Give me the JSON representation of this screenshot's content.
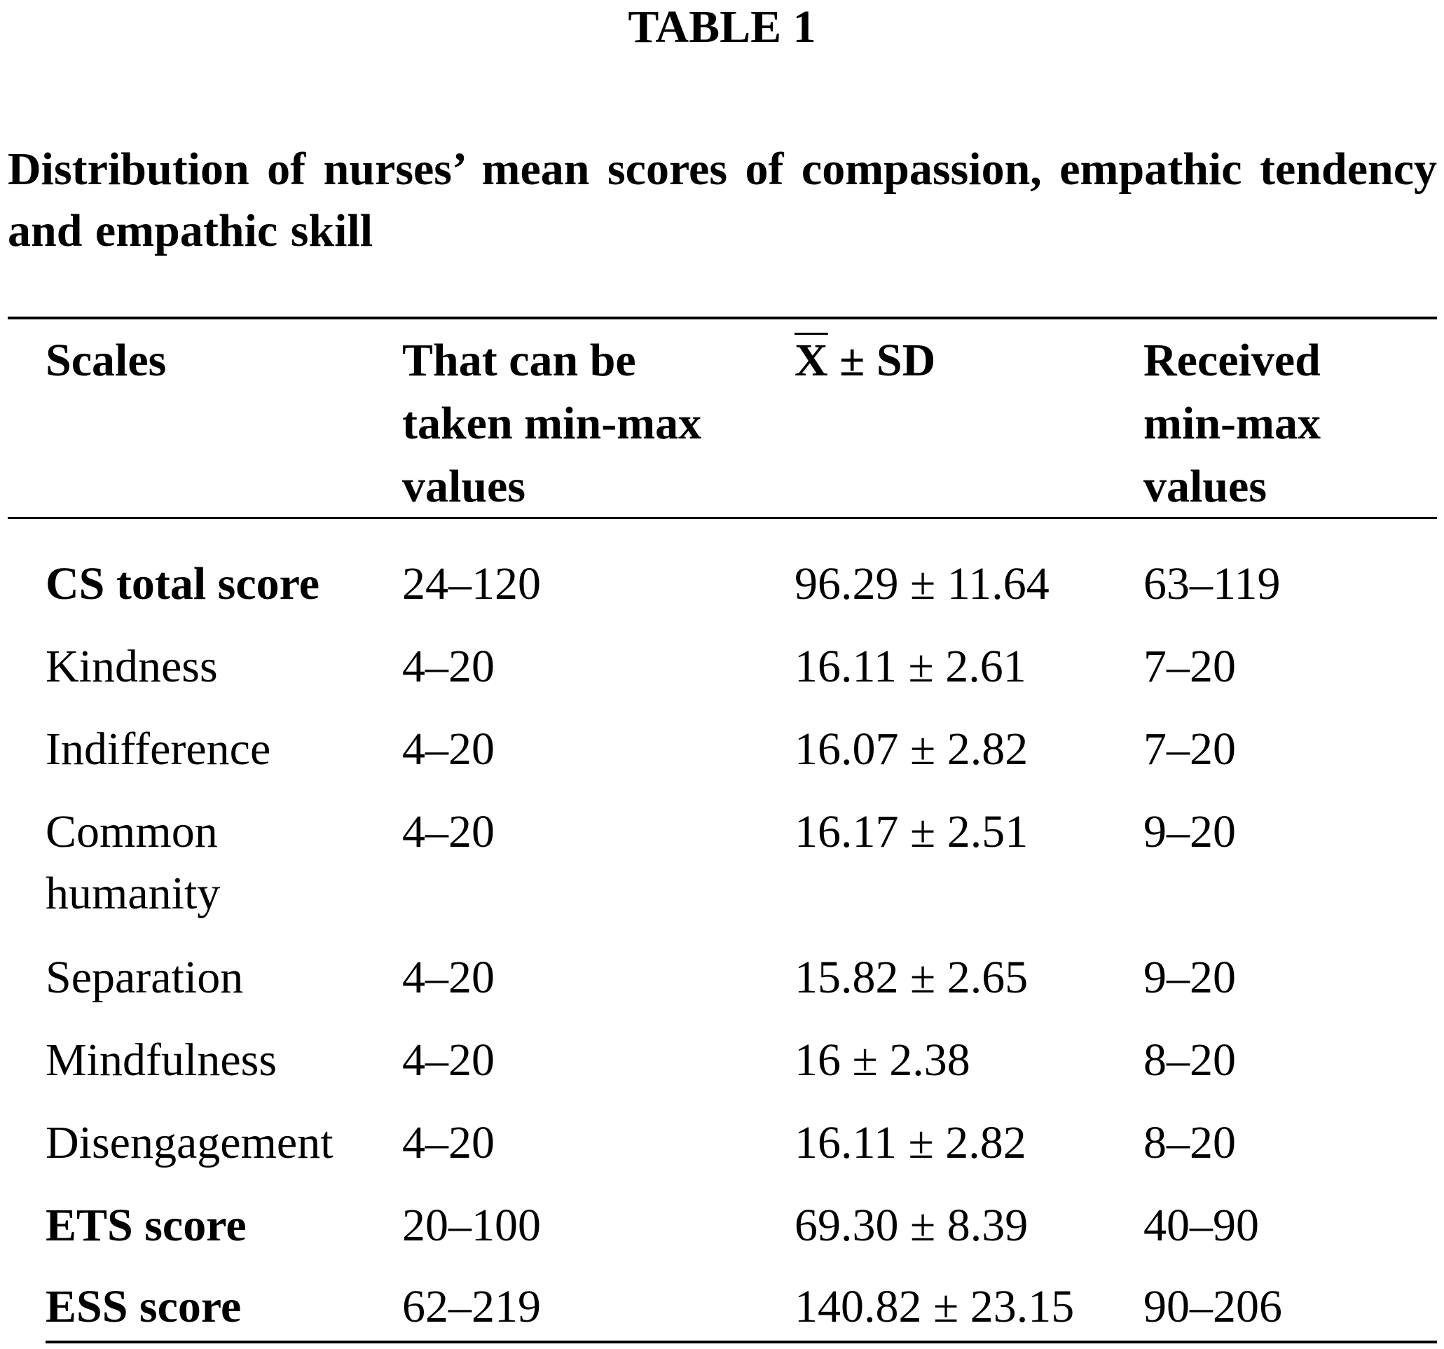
{
  "table_label": "TABLE 1",
  "caption": "Distribution of nurses’ mean scores of compassion, empathic tendency and empathic skill",
  "columns": {
    "scales": "Scales",
    "possible": [
      "That can be",
      "taken min-max",
      "values"
    ],
    "mean_symbol": "X",
    "mean_rest": " ± SD",
    "received": [
      "Received",
      "min-max",
      "values"
    ]
  },
  "rows": [
    {
      "scale": "CS total score",
      "possible": "24–120",
      "mean_sd": "96.29 ± 11.64",
      "received": "63–119"
    },
    {
      "scale": "Kindness",
      "possible": "4–20",
      "mean_sd": "16.11 ± 2.61",
      "received": "7–20"
    },
    {
      "scale": "Indifference",
      "possible": "4–20",
      "mean_sd": "16.07 ± 2.82",
      "received": "7–20"
    },
    {
      "scale": "Common",
      "scale_line2": "humanity",
      "possible": "4–20",
      "mean_sd": "16.17 ± 2.51",
      "received": "9–20"
    },
    {
      "scale": "Separation",
      "possible": "4–20",
      "mean_sd": "15.82 ± 2.65",
      "received": "9–20"
    },
    {
      "scale": "Mindfulness",
      "possible": "4–20",
      "mean_sd": "16 ± 2.38",
      "received": "8–20"
    },
    {
      "scale": "Disengagement",
      "possible": "4–20",
      "mean_sd": "16.11 ± 2.82",
      "received": "8–20"
    },
    {
      "scale": "ETS score",
      "possible": "20–100",
      "mean_sd": "69.30 ± 8.39",
      "received": "40–90"
    },
    {
      "scale": "ESS score",
      "possible": "62–219",
      "mean_sd": "140.82 ± 23.15",
      "received": "90–206"
    }
  ]
}
